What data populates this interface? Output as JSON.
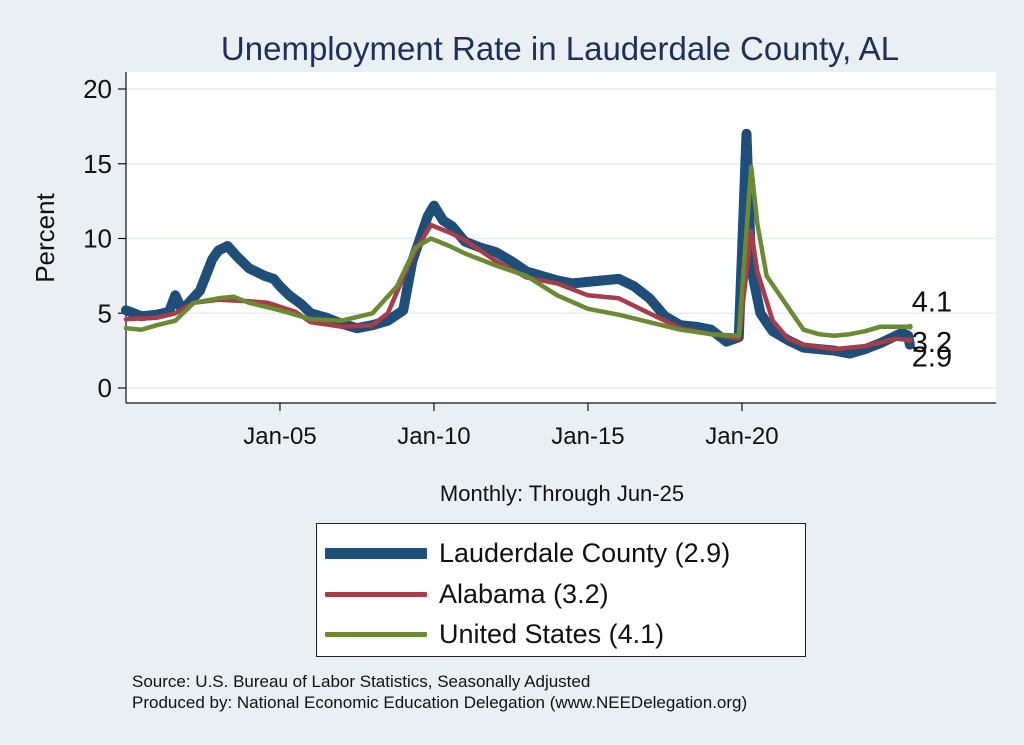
{
  "chart_data": {
    "type": "line",
    "title": "Unemployment Rate in Lauderdale  County, AL",
    "ylabel": "Percent",
    "xlabel": "Monthly: Through Jun-25",
    "ylim": [
      0,
      20
    ],
    "yticks": [
      0,
      5,
      10,
      15,
      20
    ],
    "xlim": [
      2000.0,
      2028.25
    ],
    "xticks": [
      {
        "label": "Jan-05",
        "value": 2005.0
      },
      {
        "label": "Jan-10",
        "value": 2010.0
      },
      {
        "label": "Jan-15",
        "value": 2015.0
      },
      {
        "label": "Jan-20",
        "value": 2020.0
      }
    ],
    "grid": true,
    "series": [
      {
        "name": "Lauderdale  County",
        "legend": "Lauderdale  County (2.9)",
        "end_label": "2.9",
        "color": "#1f4e79",
        "points": [
          [
            2000.0,
            5.2
          ],
          [
            2000.5,
            4.8
          ],
          [
            2001.0,
            4.9
          ],
          [
            2001.4,
            5.1
          ],
          [
            2001.6,
            6.2
          ],
          [
            2001.8,
            5.3
          ],
          [
            2002.0,
            5.6
          ],
          [
            2002.4,
            6.5
          ],
          [
            2002.8,
            8.6
          ],
          [
            2003.0,
            9.2
          ],
          [
            2003.3,
            9.5
          ],
          [
            2003.6,
            8.8
          ],
          [
            2004.0,
            8.0
          ],
          [
            2004.5,
            7.5
          ],
          [
            2004.8,
            7.3
          ],
          [
            2005.0,
            6.8
          ],
          [
            2005.3,
            6.2
          ],
          [
            2005.7,
            5.6
          ],
          [
            2006.0,
            5.0
          ],
          [
            2006.5,
            4.7
          ],
          [
            2007.0,
            4.3
          ],
          [
            2007.5,
            4.0
          ],
          [
            2008.0,
            4.2
          ],
          [
            2008.5,
            4.5
          ],
          [
            2009.0,
            5.2
          ],
          [
            2009.3,
            8.5
          ],
          [
            2009.6,
            10.3
          ],
          [
            2009.8,
            11.5
          ],
          [
            2010.0,
            12.2
          ],
          [
            2010.3,
            11.2
          ],
          [
            2010.6,
            10.8
          ],
          [
            2011.0,
            9.8
          ],
          [
            2011.5,
            9.4
          ],
          [
            2012.0,
            9.1
          ],
          [
            2012.5,
            8.5
          ],
          [
            2013.0,
            7.8
          ],
          [
            2013.5,
            7.5
          ],
          [
            2014.0,
            7.2
          ],
          [
            2014.5,
            7.0
          ],
          [
            2015.0,
            7.1
          ],
          [
            2015.5,
            7.2
          ],
          [
            2016.0,
            7.3
          ],
          [
            2016.5,
            6.8
          ],
          [
            2017.0,
            6.0
          ],
          [
            2017.5,
            4.8
          ],
          [
            2018.0,
            4.2
          ],
          [
            2018.5,
            4.1
          ],
          [
            2019.0,
            3.9
          ],
          [
            2019.5,
            3.1
          ],
          [
            2019.9,
            3.4
          ],
          [
            2020.15,
            17.0
          ],
          [
            2020.3,
            8.0
          ],
          [
            2020.6,
            5.0
          ],
          [
            2021.0,
            3.8
          ],
          [
            2021.5,
            3.2
          ],
          [
            2022.0,
            2.7
          ],
          [
            2022.5,
            2.6
          ],
          [
            2023.0,
            2.5
          ],
          [
            2023.5,
            2.3
          ],
          [
            2024.0,
            2.6
          ],
          [
            2024.5,
            3.0
          ],
          [
            2025.0,
            3.5
          ],
          [
            2025.2,
            3.7
          ],
          [
            2025.4,
            3.5
          ],
          [
            2025.45,
            2.9
          ]
        ]
      },
      {
        "name": "Alabama",
        "legend": "Alabama (3.2)",
        "end_label": "3.2",
        "color": "#a83c48",
        "points": [
          [
            2000.0,
            4.6
          ],
          [
            2001.0,
            4.7
          ],
          [
            2001.6,
            5.0
          ],
          [
            2002.2,
            5.7
          ],
          [
            2003.0,
            5.9
          ],
          [
            2004.0,
            5.8
          ],
          [
            2004.6,
            5.7
          ],
          [
            2005.5,
            5.1
          ],
          [
            2006.0,
            4.4
          ],
          [
            2007.0,
            4.1
          ],
          [
            2008.0,
            4.2
          ],
          [
            2008.5,
            5.0
          ],
          [
            2009.3,
            8.8
          ],
          [
            2009.9,
            10.9
          ],
          [
            2010.5,
            10.4
          ],
          [
            2011.0,
            9.9
          ],
          [
            2012.0,
            8.5
          ],
          [
            2013.0,
            7.4
          ],
          [
            2014.0,
            7.0
          ],
          [
            2015.0,
            6.2
          ],
          [
            2016.0,
            6.0
          ],
          [
            2017.0,
            5.0
          ],
          [
            2018.0,
            4.0
          ],
          [
            2019.0,
            3.6
          ],
          [
            2019.9,
            3.3
          ],
          [
            2020.3,
            10.5
          ],
          [
            2020.5,
            7.8
          ],
          [
            2021.0,
            4.5
          ],
          [
            2021.5,
            3.3
          ],
          [
            2022.0,
            2.9
          ],
          [
            2023.0,
            2.6
          ],
          [
            2024.0,
            2.8
          ],
          [
            2025.0,
            3.3
          ],
          [
            2025.45,
            3.2
          ]
        ]
      },
      {
        "name": "United States",
        "legend": "United States (4.1)",
        "end_label": "4.1",
        "color": "#6b8a34",
        "points": [
          [
            2000.0,
            4.0
          ],
          [
            2000.5,
            3.9
          ],
          [
            2001.0,
            4.2
          ],
          [
            2001.6,
            4.5
          ],
          [
            2002.2,
            5.7
          ],
          [
            2003.0,
            6.0
          ],
          [
            2003.5,
            6.1
          ],
          [
            2004.0,
            5.7
          ],
          [
            2005.0,
            5.2
          ],
          [
            2006.0,
            4.6
          ],
          [
            2007.0,
            4.5
          ],
          [
            2008.0,
            5.0
          ],
          [
            2008.8,
            6.8
          ],
          [
            2009.4,
            9.4
          ],
          [
            2009.9,
            10.0
          ],
          [
            2010.5,
            9.5
          ],
          [
            2011.0,
            9.0
          ],
          [
            2012.0,
            8.2
          ],
          [
            2013.0,
            7.5
          ],
          [
            2014.0,
            6.2
          ],
          [
            2015.0,
            5.3
          ],
          [
            2016.0,
            4.9
          ],
          [
            2017.0,
            4.4
          ],
          [
            2018.0,
            3.9
          ],
          [
            2019.0,
            3.6
          ],
          [
            2019.9,
            3.5
          ],
          [
            2020.3,
            14.8
          ],
          [
            2020.5,
            11.0
          ],
          [
            2020.8,
            7.5
          ],
          [
            2021.5,
            5.4
          ],
          [
            2022.0,
            3.9
          ],
          [
            2022.5,
            3.6
          ],
          [
            2023.0,
            3.5
          ],
          [
            2023.5,
            3.6
          ],
          [
            2024.0,
            3.8
          ],
          [
            2024.5,
            4.1
          ],
          [
            2025.0,
            4.1
          ],
          [
            2025.45,
            4.1
          ]
        ]
      }
    ]
  },
  "source_lines": [
    "Source: U.S. Bureau of Labor Statistics, Seasonally Adjusted",
    "Produced by: National Economic Education Delegation (www.NEEDelegation.org)"
  ]
}
